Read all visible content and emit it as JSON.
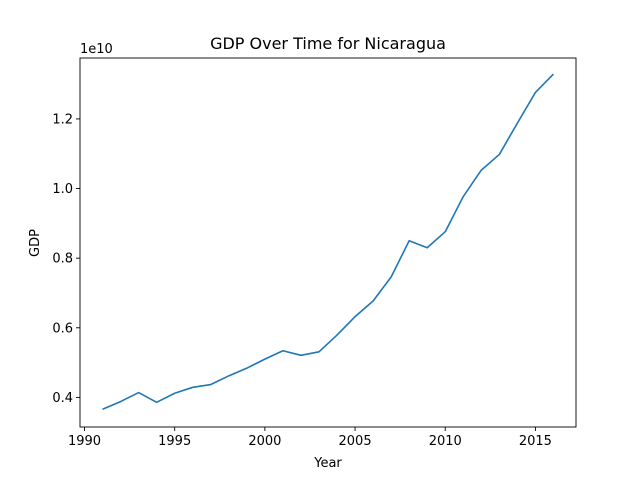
{
  "chart_data": {
    "type": "line",
    "title": "GDP Over Time for Nicaragua",
    "xlabel": "Year",
    "ylabel": "GDP",
    "y_offset_label": "1e10",
    "xlim": [
      1989.75,
      2017.25
    ],
    "ylim": [
      3150000000.0,
      13750000000.0
    ],
    "x_ticks": [
      1990,
      1995,
      2000,
      2005,
      2010,
      2015
    ],
    "x_tick_labels": [
      "1990",
      "1995",
      "2000",
      "2005",
      "2010",
      "2015"
    ],
    "y_ticks": [
      4000000000.0,
      6000000000.0,
      8000000000.0,
      10000000000.0,
      12000000000.0
    ],
    "y_tick_labels": [
      "0.4",
      "0.6",
      "0.8",
      "1.0",
      "1.2"
    ],
    "grid": false,
    "line_color": "#1f77b4",
    "series": [
      {
        "x": [
          1991,
          1992,
          1993,
          1994,
          1995,
          1996,
          1997,
          1998,
          1999,
          2000,
          2001,
          2002,
          2003,
          2004,
          2005,
          2006,
          2007,
          2008,
          2009,
          2010,
          2011,
          2012,
          2013,
          2014,
          2015,
          2016
        ],
        "values": [
          3660000000.0,
          3880000000.0,
          4140000000.0,
          3860000000.0,
          4120000000.0,
          4290000000.0,
          4370000000.0,
          4620000000.0,
          4840000000.0,
          5100000000.0,
          5340000000.0,
          5210000000.0,
          5310000000.0,
          5790000000.0,
          6320000000.0,
          6770000000.0,
          7460000000.0,
          8500000000.0,
          8300000000.0,
          8760000000.0,
          9770000000.0,
          10530000000.0,
          10980000000.0,
          11880000000.0,
          12760000000.0,
          13290000000.0
        ]
      }
    ]
  }
}
